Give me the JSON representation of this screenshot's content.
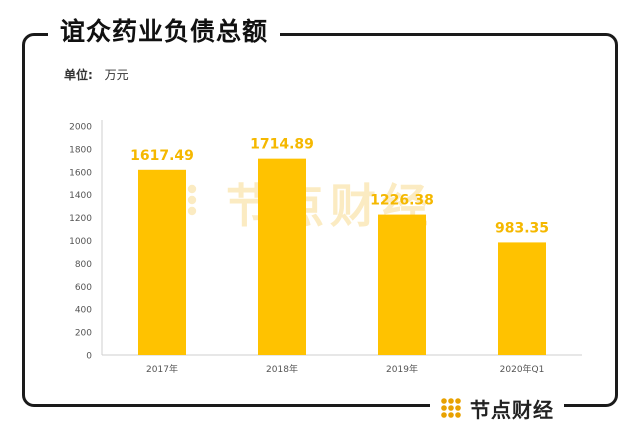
{
  "title": "谊众药业负债总额",
  "unit": {
    "label": "单位:",
    "value": "万元"
  },
  "watermark": "节点财经",
  "footer": {
    "brand": "节点财经"
  },
  "colors": {
    "bar": "#FFC200",
    "value_label": "#F5B800",
    "axis_text": "#555555",
    "watermark": "#FBEBC2",
    "logo": "#E8A100"
  },
  "chart_data": {
    "type": "bar",
    "title": "谊众药业负债总额",
    "ylabel": "万元",
    "categories": [
      "2017年",
      "2018年",
      "2019年",
      "2020年Q1"
    ],
    "values": [
      1617.49,
      1714.89,
      1226.38,
      983.35
    ],
    "value_labels": [
      "1617.49",
      "1714.89",
      "1226.38",
      "983.35"
    ],
    "ylim": [
      0,
      2000
    ],
    "yticks": [
      0,
      200,
      400,
      600,
      800,
      1000,
      1200,
      1400,
      1600,
      1800,
      2000
    ],
    "grid": false
  }
}
